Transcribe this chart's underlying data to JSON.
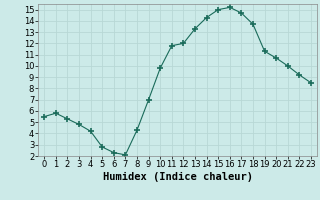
{
  "x": [
    0,
    1,
    2,
    3,
    4,
    5,
    6,
    7,
    8,
    9,
    10,
    11,
    12,
    13,
    14,
    15,
    16,
    17,
    18,
    19,
    20,
    21,
    22,
    23
  ],
  "y": [
    5.5,
    5.8,
    5.3,
    4.8,
    4.2,
    2.8,
    2.3,
    2.1,
    4.3,
    7.0,
    9.8,
    11.8,
    12.0,
    13.3,
    14.3,
    15.0,
    15.2,
    14.7,
    13.7,
    11.3,
    10.7,
    10.0,
    9.2,
    8.5
  ],
  "line_color": "#1a6b5a",
  "marker": "+",
  "marker_size": 4,
  "bg_color": "#cceae8",
  "grid_color": "#b8d8d5",
  "xlabel": "Humidex (Indice chaleur)",
  "xlim": [
    -0.5,
    23.5
  ],
  "ylim": [
    2,
    15.5
  ],
  "yticks": [
    2,
    3,
    4,
    5,
    6,
    7,
    8,
    9,
    10,
    11,
    12,
    13,
    14,
    15
  ],
  "xticks": [
    0,
    1,
    2,
    3,
    4,
    5,
    6,
    7,
    8,
    9,
    10,
    11,
    12,
    13,
    14,
    15,
    16,
    17,
    18,
    19,
    20,
    21,
    22,
    23
  ],
  "tick_fontsize": 6,
  "xlabel_fontsize": 7.5
}
